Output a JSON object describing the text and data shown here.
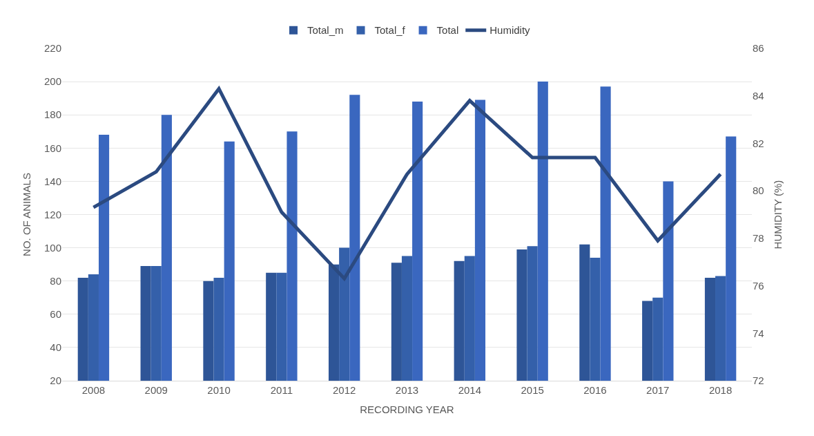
{
  "chart_data": {
    "type": "bar",
    "xlabel": "RECORDING YEAR",
    "ylabel": "NO. OF ANIMALS",
    "y2label": "HUMIDITY (%)",
    "categories": [
      "2008",
      "2009",
      "2010",
      "2011",
      "2012",
      "2013",
      "2014",
      "2015",
      "2016",
      "2017",
      "2018"
    ],
    "series": [
      {
        "name": "Total_m",
        "color": "#2e5597",
        "values": [
          82,
          89,
          80,
          85,
          90,
          91,
          92,
          99,
          102,
          68,
          82
        ]
      },
      {
        "name": "Total_f",
        "color": "#3460aa",
        "values": [
          84,
          89,
          82,
          85,
          100,
          95,
          95,
          101,
          94,
          70,
          83
        ]
      },
      {
        "name": "Total",
        "color": "#3a67bf",
        "values": [
          168,
          180,
          164,
          170,
          192,
          188,
          189,
          200,
          197,
          140,
          167
        ]
      },
      {
        "name": "Humidity",
        "type": "line",
        "axis": "y2",
        "color": "#2b4a80",
        "values": [
          79.3,
          80.8,
          84.3,
          79.1,
          76.3,
          80.7,
          83.8,
          81.4,
          81.4,
          77.9,
          80.7
        ]
      }
    ],
    "ylim": [
      20,
      220
    ],
    "yticks": [
      20,
      40,
      60,
      80,
      100,
      120,
      140,
      160,
      180,
      200,
      220
    ],
    "y2lim": [
      72,
      86
    ],
    "y2ticks": [
      72,
      74,
      76,
      78,
      80,
      82,
      84,
      86
    ],
    "grid": "y",
    "legend": "top",
    "marker": "none",
    "line_style": "solid"
  }
}
